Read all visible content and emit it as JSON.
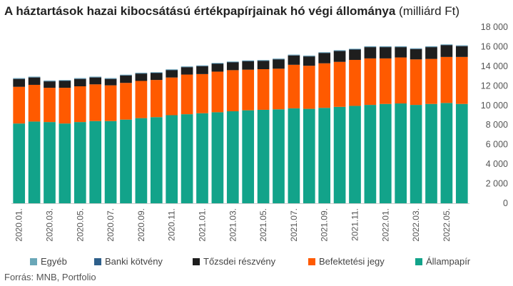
{
  "header": {
    "title_bold": "A háztartások hazai kibocsátású értékpapírjainak hó végi állománya",
    "title_unit": "(milliárd Ft)"
  },
  "source": "Forrás: MNB, Portfolio",
  "chart_data": {
    "type": "bar",
    "stacked": true,
    "categories": [
      "2020.01.",
      "2020.02.",
      "2020.03.",
      "2020.04.",
      "2020.05.",
      "2020.06.",
      "2020.07.",
      "2020.08.",
      "2020.09.",
      "2020.10.",
      "2020.11.",
      "2020.12.",
      "2021.01.",
      "2021.02.",
      "2021.03.",
      "2021.04.",
      "2021.05.",
      "2021.06.",
      "2021.07.",
      "2021.08.",
      "2021.09.",
      "2021.10.",
      "2021.11.",
      "2021.12.",
      "2022.01.",
      "2022.02.",
      "2022.03.",
      "2022.04.",
      "2022.05.",
      "2022.06."
    ],
    "tick_labels": [
      "2020.01.",
      "",
      "2020.03.",
      "",
      "2020.05.",
      "",
      "2020.07.",
      "",
      "2020.09.",
      "",
      "2020.11.",
      "",
      "2021.01.",
      "",
      "2021.03.",
      "",
      "2021.05.",
      "",
      "2021.07.",
      "",
      "2021.09.",
      "",
      "2021.11.",
      "",
      "2022.01.",
      "",
      "2022.03.",
      "",
      "2022.05.",
      ""
    ],
    "series": [
      {
        "name": "Állampapír",
        "color": "#12a38a",
        "values": [
          8150,
          8350,
          8300,
          8150,
          8300,
          8400,
          8400,
          8550,
          8700,
          8800,
          9000,
          9100,
          9200,
          9300,
          9400,
          9500,
          9550,
          9600,
          9700,
          9650,
          9750,
          9850,
          9950,
          10050,
          10150,
          10200,
          10050,
          10150,
          10250,
          10150
        ]
      },
      {
        "name": "Befektetési jegy",
        "color": "#ff5a00",
        "values": [
          3750,
          3750,
          3500,
          3650,
          3650,
          3750,
          3650,
          3750,
          3800,
          3800,
          3850,
          4050,
          4000,
          4150,
          4200,
          4150,
          4150,
          4150,
          4450,
          4400,
          4550,
          4600,
          4700,
          4750,
          4650,
          4700,
          4650,
          4600,
          4700,
          4800
        ]
      },
      {
        "name": "Tőzsdei részvény",
        "color": "#1e1e1e",
        "values": [
          800,
          750,
          650,
          700,
          750,
          700,
          650,
          750,
          750,
          700,
          750,
          750,
          800,
          800,
          800,
          850,
          850,
          950,
          950,
          950,
          1050,
          1100,
          1050,
          1150,
          1150,
          1050,
          1050,
          1200,
          1200,
          1100
        ]
      },
      {
        "name": "Banki kötvény",
        "color": "#2e5f8a",
        "values": [
          40,
          40,
          40,
          40,
          40,
          40,
          40,
          40,
          40,
          40,
          40,
          40,
          40,
          40,
          40,
          40,
          40,
          40,
          40,
          40,
          40,
          40,
          40,
          40,
          40,
          40,
          40,
          40,
          40,
          40
        ]
      },
      {
        "name": "Egyéb",
        "color": "#6aa7b8",
        "values": [
          50,
          50,
          50,
          50,
          50,
          50,
          50,
          50,
          50,
          50,
          50,
          50,
          50,
          50,
          50,
          50,
          50,
          50,
          50,
          50,
          50,
          50,
          50,
          50,
          50,
          50,
          50,
          50,
          50,
          50
        ]
      }
    ],
    "ylim": [
      0,
      18000
    ],
    "yticks": [
      0,
      2000,
      4000,
      6000,
      8000,
      10000,
      12000,
      14000,
      16000,
      18000
    ],
    "ytick_labels": [
      "0",
      "2 000",
      "4 000",
      "6 000",
      "8 000",
      "10 000",
      "12 000",
      "14 000",
      "16 000",
      "18 000"
    ],
    "y_axis_position": "right",
    "grid": false,
    "legend": {
      "position": "bottom",
      "items": [
        {
          "label": "Egyéb",
          "color": "#6aa7b8"
        },
        {
          "label": "Banki kötvény",
          "color": "#2e5f8a"
        },
        {
          "label": "Tőzsdei részvény",
          "color": "#1e1e1e"
        },
        {
          "label": "Befektetési jegy",
          "color": "#ff5a00"
        },
        {
          "label": "Állampapír",
          "color": "#12a38a"
        }
      ]
    }
  }
}
